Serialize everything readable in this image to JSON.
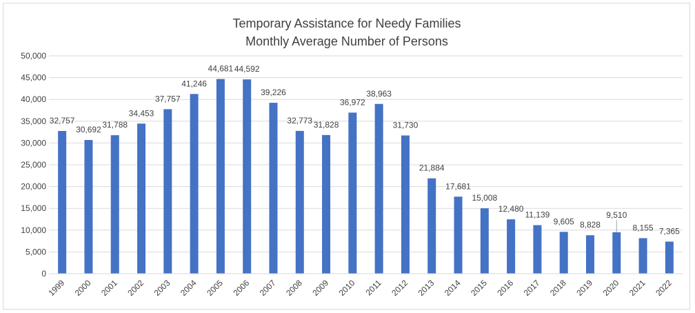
{
  "chart_data": {
    "type": "bar",
    "title": "Temporary Assistance for Needy Families",
    "subtitle": "Monthly Average Number of Persons",
    "categories": [
      "1999",
      "2000",
      "2001",
      "2002",
      "2003",
      "2004",
      "2005",
      "2006",
      "2007",
      "2008",
      "2009",
      "2010",
      "2011",
      "2012",
      "2013",
      "2014",
      "2015",
      "2016",
      "2017",
      "2018",
      "2019",
      "2020",
      "2021",
      "2022"
    ],
    "values": [
      32757,
      30692,
      31788,
      34453,
      37757,
      41246,
      44681,
      44592,
      39226,
      32773,
      31828,
      36972,
      38963,
      31730,
      21884,
      17681,
      15008,
      12480,
      11139,
      9605,
      8828,
      9510,
      8155,
      7365
    ],
    "data_labels": [
      "32,757",
      "30,692",
      "31,788",
      "34,453",
      "37,757",
      "41,246",
      "44,681",
      "44,592",
      "39,226",
      "32,773",
      "31,828",
      "36,972",
      "38,963",
      "31,730",
      "21,884",
      "17,681",
      "15,008",
      "12,480",
      "11,139",
      "9,605",
      "8,828",
      "9,510",
      "8,155",
      "7,365"
    ],
    "y_ticks": [
      "0",
      "5,000",
      "10,000",
      "15,000",
      "20,000",
      "25,000",
      "30,000",
      "35,000",
      "40,000",
      "45,000",
      "50,000"
    ],
    "ylim": [
      0,
      50000
    ],
    "grid": true,
    "legend": "none",
    "bar_color": "#4472c4",
    "grid_color": "#d9d9d9",
    "text_color": "#404040"
  }
}
